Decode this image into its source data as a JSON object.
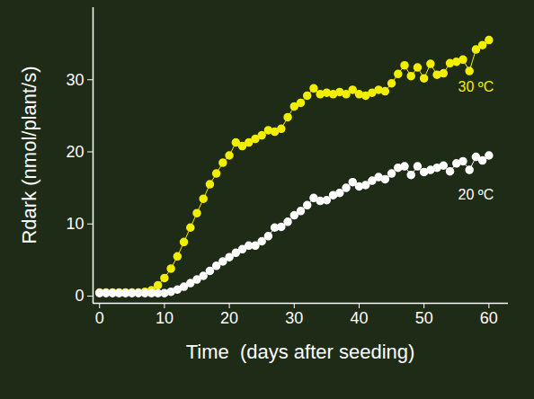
{
  "chart_data": {
    "type": "line",
    "x_label": "Time  (days after seeding)",
    "y_label": "Rdark (nmol/plant/s)",
    "xlim": [
      -1,
      63
    ],
    "ylim": [
      -1,
      40
    ],
    "xticks": [
      0,
      10,
      20,
      30,
      40,
      50,
      60
    ],
    "yticks": [
      0,
      10,
      20,
      30
    ],
    "marker": "circle",
    "x": [
      0,
      1,
      2,
      3,
      4,
      5,
      6,
      7,
      8,
      9,
      10,
      11,
      12,
      13,
      14,
      15,
      16,
      17,
      18,
      19,
      20,
      21,
      22,
      23,
      24,
      25,
      26,
      27,
      28,
      29,
      30,
      31,
      32,
      33,
      34,
      35,
      36,
      37,
      38,
      39,
      40,
      41,
      42,
      43,
      44,
      45,
      46,
      47,
      48,
      49,
      50,
      51,
      52,
      53,
      54,
      55,
      56,
      57,
      58,
      59,
      60
    ],
    "series": [
      {
        "name": "30 ºC",
        "color": "#f2ee00",
        "values": [
          0.5,
          0.5,
          0.5,
          0.5,
          0.5,
          0.5,
          0.5,
          0.6,
          0.8,
          1.5,
          2.5,
          3.8,
          5.5,
          7.5,
          9.5,
          11.5,
          13.5,
          15.5,
          17,
          18.5,
          19.5,
          21.3,
          20.8,
          21.3,
          21.8,
          22.3,
          23,
          22.8,
          23.2,
          24.8,
          26.3,
          26.8,
          27.8,
          28.8,
          28,
          28.2,
          28,
          28.3,
          28,
          28.6,
          28,
          27.8,
          28.2,
          28.6,
          28.4,
          29.5,
          30.8,
          32,
          30.5,
          31.7,
          30.2,
          32.2,
          30.7,
          30.9,
          32.3,
          32.5,
          32.8,
          31.2,
          34.2,
          34.8,
          35.5
        ]
      },
      {
        "name": "20 ºC",
        "color": "#ffffff",
        "values": [
          0.4,
          0.4,
          0.4,
          0.4,
          0.4,
          0.4,
          0.4,
          0.4,
          0.4,
          0.4,
          0.4,
          0.6,
          0.9,
          1.3,
          1.8,
          2.3,
          2.8,
          3.5,
          4.2,
          4.8,
          5.4,
          6,
          6.5,
          7,
          7,
          7.6,
          8.3,
          9.5,
          9.6,
          10.3,
          11.2,
          11.8,
          12.6,
          13.6,
          13.2,
          13.3,
          14,
          14.3,
          15,
          15.8,
          15.2,
          15.4,
          16,
          16.5,
          16.2,
          17,
          17.8,
          18,
          16.8,
          18,
          17.2,
          17.5,
          17.8,
          18.1,
          17.3,
          18.4,
          18.7,
          17.5,
          19.3,
          18.8,
          19.5
        ]
      }
    ]
  }
}
